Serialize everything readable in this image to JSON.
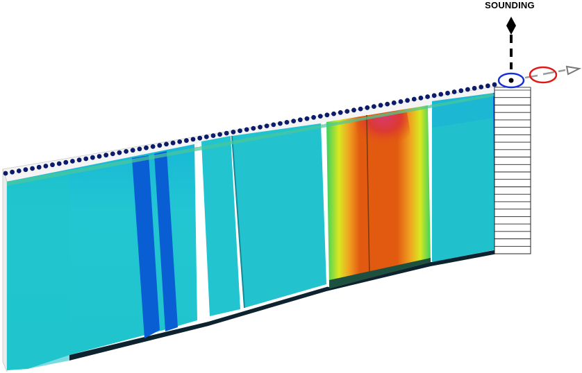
{
  "labels": {
    "sounding": "SOUNDING"
  },
  "colors": {
    "background": "#ffffff",
    "cyan_fill": "#20c5d0",
    "blue_stripe": "#0a5ed4",
    "orange_fill": "#e25a10",
    "red_top": "#d63048",
    "yellow_edge": "#d8e820",
    "green_edge": "#3cd060",
    "electrode_dot": "#0c1c6a",
    "shadow": "#0d2430",
    "blue_ellipse": "#1530d8",
    "red_ellipse": "#e01818",
    "arrow_gray": "#9a9a9a"
  },
  "icons": {
    "sounding_marker": "diamond-icon",
    "direction_arrow": "triangle-arrow-icon"
  }
}
